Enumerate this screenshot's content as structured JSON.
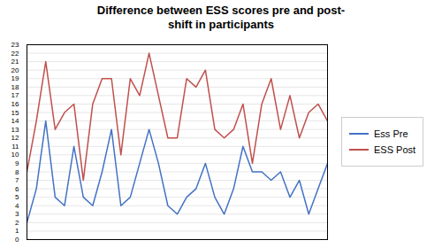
{
  "chart_data": {
    "type": "line",
    "title": "Difference between ESS scores pre and post-\nshift in participants",
    "series": [
      {
        "name": "Ess Pre",
        "color": "#4472C4",
        "values": [
          2,
          6,
          14,
          5,
          4,
          11,
          5,
          4,
          8,
          13,
          4,
          5,
          9,
          13,
          9,
          4,
          3,
          5,
          6,
          9,
          5,
          3,
          6,
          11,
          8,
          8,
          7,
          8,
          5,
          7,
          3,
          6,
          9
        ]
      },
      {
        "name": "ESS Post",
        "color": "#C0504D",
        "values": [
          8,
          14,
          21,
          13,
          15,
          16,
          7,
          16,
          19,
          19,
          10,
          19,
          17,
          22,
          17,
          12,
          12,
          19,
          18,
          20,
          13,
          12,
          13,
          16,
          9,
          16,
          19,
          13,
          17,
          12,
          15,
          16,
          14
        ]
      }
    ],
    "ylim": [
      0,
      23
    ],
    "yticks": [
      0,
      1,
      2,
      3,
      4,
      5,
      6,
      7,
      8,
      9,
      10,
      11,
      12,
      13,
      14,
      15,
      16,
      17,
      18,
      19,
      20,
      21,
      22,
      23
    ],
    "grid": true,
    "legend": "right",
    "tick_labels": "y"
  }
}
